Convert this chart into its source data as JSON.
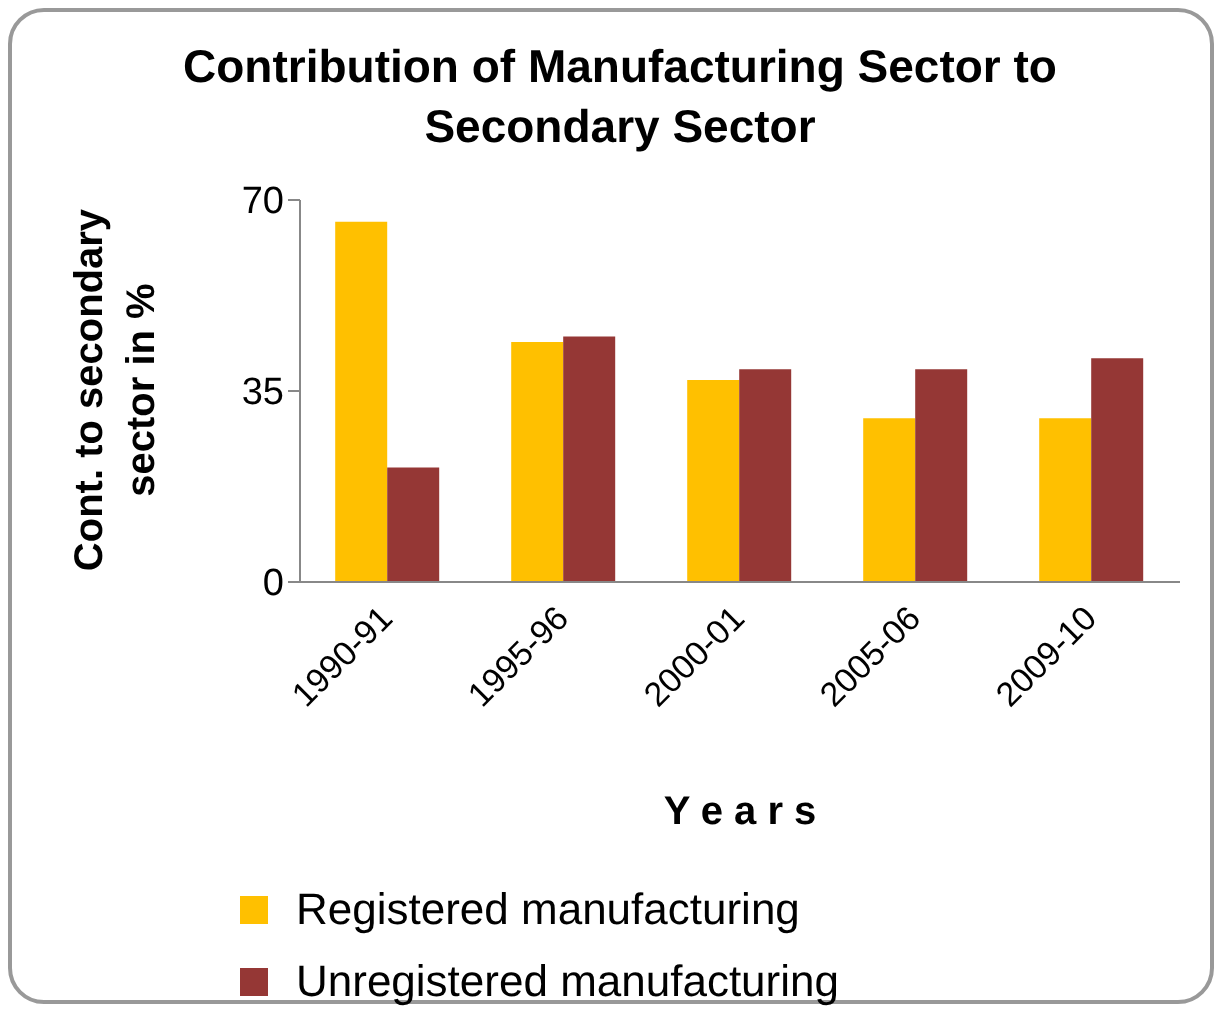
{
  "chart_data": {
    "type": "bar",
    "title": "Contribution of Manufacturing Sector to Secondary Sector",
    "xlabel": "Y e a r s",
    "ylabel": "Cont. to secondary sector in %",
    "categories": [
      "1990-91",
      "1995-96",
      "2000-01",
      "2005-06",
      "2009-10"
    ],
    "series": [
      {
        "name": "Registered manufacturing",
        "color": "#ffc000",
        "values": [
          66,
          44,
          37,
          30,
          30
        ]
      },
      {
        "name": "Unregistered manufacturing",
        "color": "#953735",
        "values": [
          21,
          45,
          39,
          39,
          41
        ]
      }
    ],
    "ylim": [
      0,
      70
    ],
    "yticks": [
      0,
      35,
      70
    ],
    "grid": false,
    "legend": "bottom"
  }
}
